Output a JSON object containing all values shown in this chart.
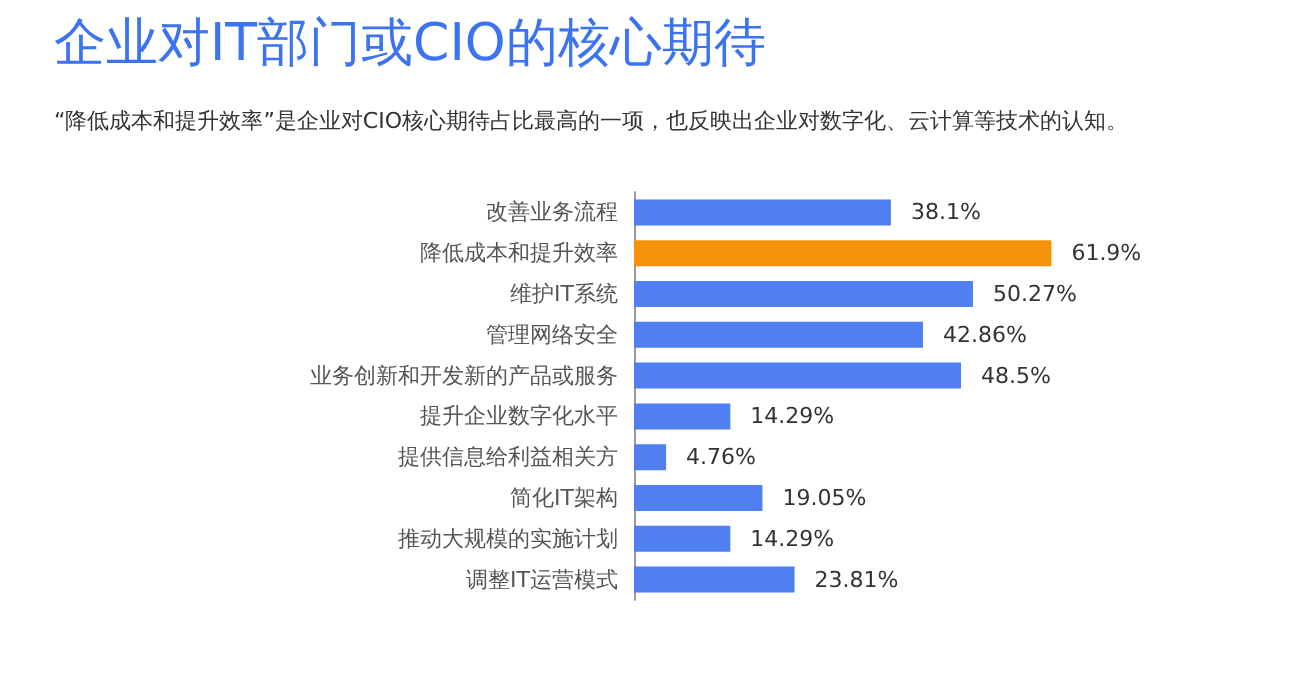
{
  "chart_data": {
    "type": "bar",
    "orientation": "horizontal",
    "title": "企业对IT部门或CIO的核心期待",
    "subtitle": "“降低成本和提升效率”是企业对CIO核心期待占比最高的一项，也反映出企业对数字化、云计算等技术的认知。",
    "categories": [
      "改善业务流程",
      "降低成本和提升效率",
      "维护IT系统",
      "管理网络安全",
      "业务创新和开发新的产品或服务",
      "提升企业数字化水平",
      "提供信息给利益相关方",
      "简化IT架构",
      "推动大规模的实施计划",
      "调整IT运营模式"
    ],
    "values": [
      38.1,
      61.9,
      50.27,
      42.86,
      48.5,
      14.29,
      4.76,
      19.05,
      14.29,
      23.81
    ],
    "value_labels": [
      "38.1%",
      "61.9%",
      "50.27%",
      "42.86%",
      "48.5%",
      "14.29%",
      "4.76%",
      "19.05%",
      "14.29%",
      "23.81%"
    ],
    "colors": [
      "#4f7ff0",
      "#f5940c",
      "#4f7ff0",
      "#4f7ff0",
      "#4f7ff0",
      "#4f7ff0",
      "#4f7ff0",
      "#4f7ff0",
      "#4f7ff0",
      "#4f7ff0"
    ]
  }
}
